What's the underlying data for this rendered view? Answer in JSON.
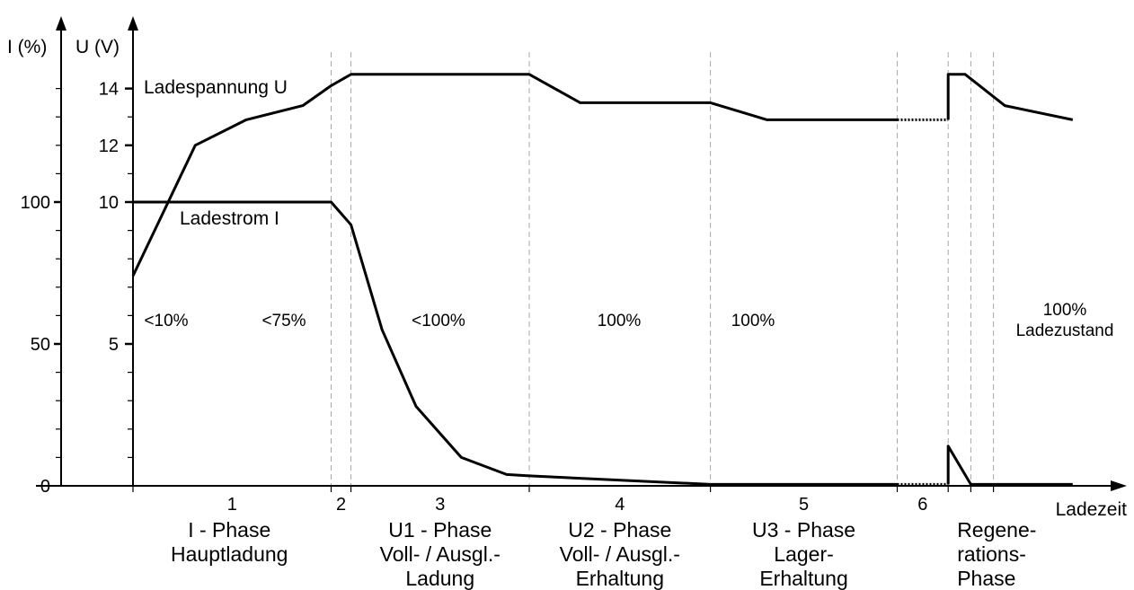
{
  "chart_data": {
    "type": "line",
    "y_axes": [
      {
        "label": "I (%)",
        "ticks": [
          {
            "value": 0,
            "label": "0"
          },
          {
            "value": 50,
            "label": "50"
          },
          {
            "value": 100,
            "label": "100"
          }
        ],
        "range": [
          0,
          140
        ]
      },
      {
        "label": "U (V)",
        "ticks": [
          {
            "value": 5,
            "label": "5"
          },
          {
            "value": 10,
            "label": "10"
          },
          {
            "value": 12,
            "label": "12"
          },
          {
            "value": 14,
            "label": "14"
          }
        ],
        "range": [
          0,
          14
        ]
      }
    ],
    "x_axis": {
      "label": "Ladezeit"
    },
    "phase_boundaries": [
      0,
      3.5,
      3.85,
      7,
      10.2,
      13.5,
      14.4,
      14.8,
      15.2
    ],
    "phases": [
      {
        "number": "1",
        "name": [
          "I - Phase",
          "Hauptladung"
        ],
        "charge_state": [
          "<10%",
          "<75%"
        ]
      },
      {
        "number": "2",
        "name": [],
        "charge_state": []
      },
      {
        "number": "3",
        "name": [
          "U1 - Phase",
          "Voll- / Ausgl.-",
          "Ladung"
        ],
        "charge_state": [
          "<100%"
        ]
      },
      {
        "number": "4",
        "name": [
          "U2 - Phase",
          "Voll- / Ausgl.-",
          "Erhaltung"
        ],
        "charge_state": [
          "100%"
        ]
      },
      {
        "number": "5",
        "name": [
          "U3 - Phase",
          "Lager-",
          "Erhaltung"
        ],
        "charge_state": [
          "100%"
        ]
      },
      {
        "number": "6",
        "name": [
          "Regene-",
          "rations-",
          "Phase"
        ],
        "charge_state": []
      },
      {
        "number": "",
        "name": [],
        "charge_state": [
          "100%",
          "Ladezustand"
        ]
      }
    ],
    "series": [
      {
        "name": "Ladespannung U",
        "axis": "U (V)",
        "points": [
          [
            0,
            7.4
          ],
          [
            1.1,
            12.0
          ],
          [
            2.0,
            12.9
          ],
          [
            3.0,
            13.4
          ],
          [
            3.5,
            14.1
          ],
          [
            3.85,
            14.5
          ],
          [
            7.0,
            14.5
          ],
          [
            7.9,
            13.5
          ],
          [
            10.2,
            13.5
          ],
          [
            11.2,
            12.9
          ],
          [
            12.5,
            12.9
          ],
          [
            13.5,
            12.9
          ],
          [
            14.4,
            12.9
          ],
          [
            14.4,
            14.5
          ],
          [
            14.7,
            14.5
          ],
          [
            15.4,
            13.4
          ],
          [
            16.6,
            12.9
          ]
        ]
      },
      {
        "name": "Ladestrom I",
        "axis": "I (%)",
        "points": [
          [
            0,
            100
          ],
          [
            3.5,
            100
          ],
          [
            3.85,
            92
          ],
          [
            4.4,
            55
          ],
          [
            5.0,
            28
          ],
          [
            5.8,
            10
          ],
          [
            6.6,
            4
          ],
          [
            7.0,
            3.5
          ],
          [
            10.2,
            0.5
          ],
          [
            13.5,
            0.5
          ],
          [
            14.4,
            0.5
          ],
          [
            14.4,
            14
          ],
          [
            14.8,
            0.5
          ],
          [
            16.6,
            0.5
          ]
        ]
      }
    ]
  }
}
